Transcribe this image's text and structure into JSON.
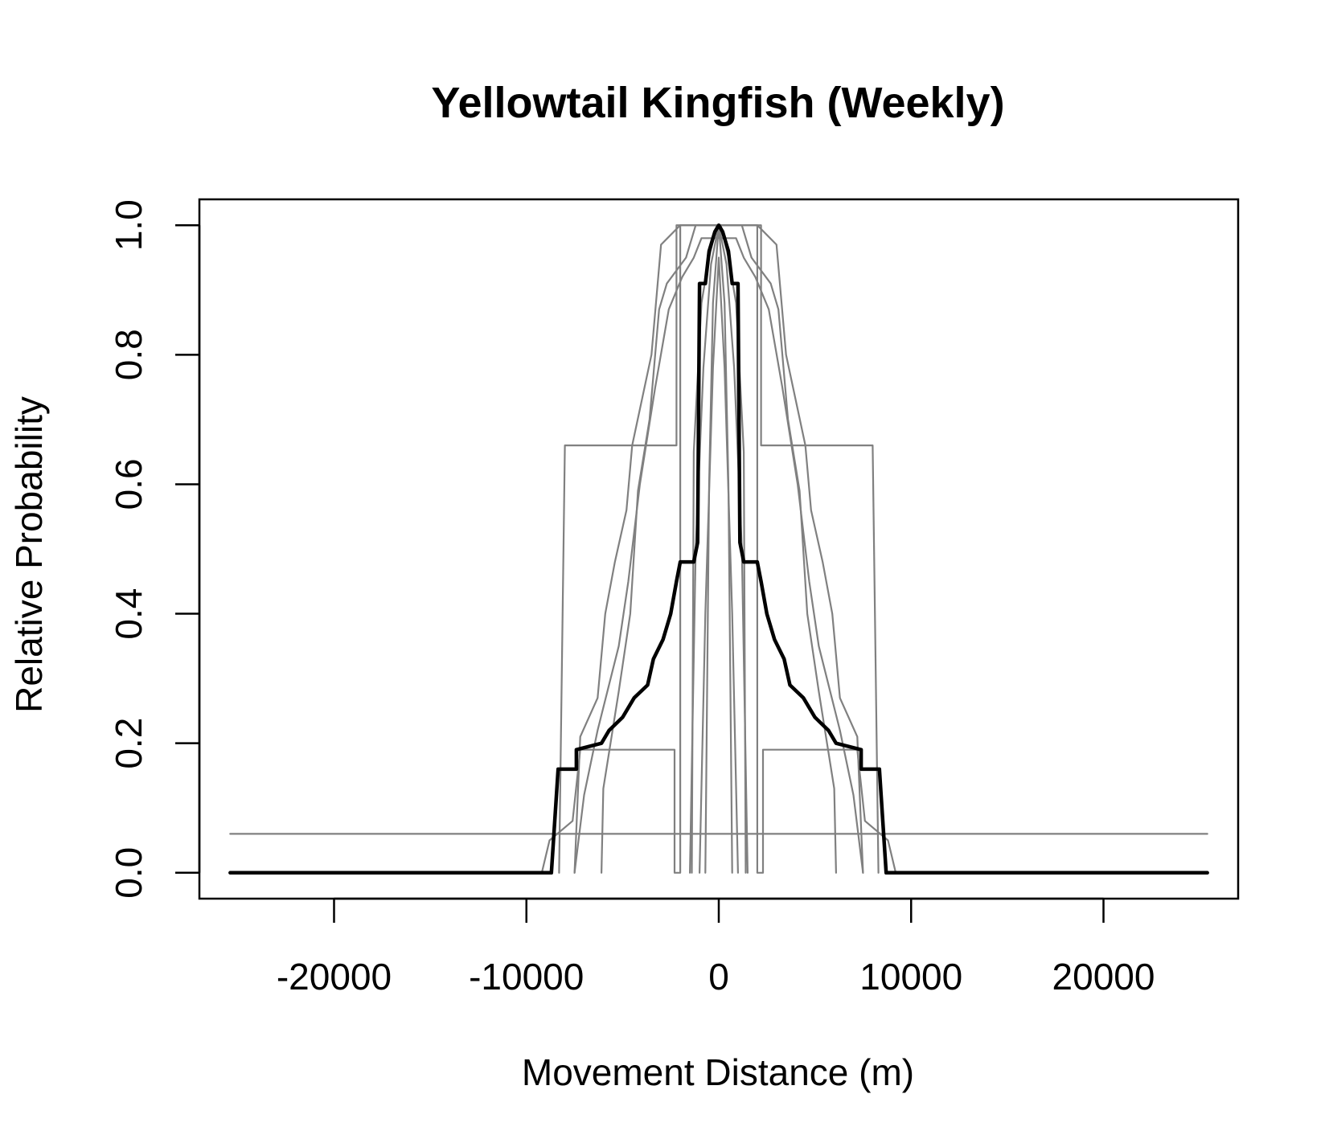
{
  "chart_data": {
    "type": "line",
    "title": "Yellowtail Kingfish (Weekly)",
    "xlabel": "Movement Distance (m)",
    "ylabel": "Relative Probability",
    "xlim": [
      -27000,
      27000
    ],
    "ylim": [
      -0.04,
      1.04
    ],
    "x_ticks": [
      -20000,
      -10000,
      0,
      10000,
      20000
    ],
    "x_tick_labels": [
      "-20000",
      "-10000",
      "0",
      "10000",
      "20000"
    ],
    "y_ticks": [
      0.0,
      0.2,
      0.4,
      0.6,
      0.8,
      1.0
    ],
    "y_tick_labels": [
      "0.0",
      "0.2",
      "0.4",
      "0.6",
      "0.8",
      "1.0"
    ],
    "grid": false,
    "legend": "none",
    "colors": {
      "individual": "#808080",
      "mean": "#000000"
    },
    "series": [
      {
        "role": "individual",
        "points": [
          [
            -25400,
            0.06
          ],
          [
            25400,
            0.06
          ]
        ]
      },
      {
        "role": "individual",
        "points": [
          [
            -8300,
            0
          ],
          [
            -8000,
            0.66
          ],
          [
            -2200,
            0.66
          ],
          [
            -2200,
            1.0
          ],
          [
            2200,
            1.0
          ],
          [
            2200,
            0.66
          ],
          [
            8000,
            0.66
          ],
          [
            8300,
            0
          ]
        ]
      },
      {
        "role": "individual",
        "points": [
          [
            -9200,
            0
          ],
          [
            -8800,
            0.05
          ],
          [
            -7600,
            0.08
          ],
          [
            -7200,
            0.19
          ],
          [
            -2300,
            0.19
          ],
          [
            -2300,
            0
          ],
          [
            -2000,
            0
          ],
          [
            -2000,
            1.0
          ],
          [
            2000,
            1.0
          ],
          [
            2000,
            0
          ],
          [
            2300,
            0
          ],
          [
            2300,
            0.19
          ],
          [
            7200,
            0.19
          ],
          [
            7600,
            0.08
          ],
          [
            8800,
            0.05
          ],
          [
            9200,
            0
          ]
        ]
      },
      {
        "role": "individual",
        "points": [
          [
            -7500,
            0
          ],
          [
            -7200,
            0.21
          ],
          [
            -6300,
            0.27
          ],
          [
            -5900,
            0.4
          ],
          [
            -5400,
            0.48
          ],
          [
            -4800,
            0.56
          ],
          [
            -4500,
            0.66
          ],
          [
            -3500,
            0.8
          ],
          [
            -3000,
            0.97
          ],
          [
            -2000,
            1.0
          ],
          [
            2000,
            1.0
          ],
          [
            3000,
            0.97
          ],
          [
            3500,
            0.8
          ],
          [
            4500,
            0.66
          ],
          [
            4800,
            0.56
          ],
          [
            5400,
            0.48
          ],
          [
            5900,
            0.4
          ],
          [
            6300,
            0.27
          ],
          [
            7200,
            0.21
          ],
          [
            7500,
            0
          ]
        ]
      },
      {
        "role": "individual",
        "points": [
          [
            -6100,
            0
          ],
          [
            -6000,
            0.13
          ],
          [
            -5200,
            0.28
          ],
          [
            -4600,
            0.4
          ],
          [
            -4200,
            0.59
          ],
          [
            -3600,
            0.7
          ],
          [
            -3100,
            0.87
          ],
          [
            -2700,
            0.91
          ],
          [
            -1700,
            0.95
          ],
          [
            -1200,
            1.0
          ],
          [
            1200,
            1.0
          ],
          [
            1700,
            0.95
          ],
          [
            2700,
            0.91
          ],
          [
            3100,
            0.87
          ],
          [
            3600,
            0.7
          ],
          [
            4200,
            0.59
          ],
          [
            4600,
            0.4
          ],
          [
            5200,
            0.28
          ],
          [
            6000,
            0.13
          ],
          [
            6100,
            0
          ]
        ]
      },
      {
        "role": "individual",
        "points": [
          [
            -7500,
            0
          ],
          [
            -7000,
            0.12
          ],
          [
            -6300,
            0.22
          ],
          [
            -5200,
            0.35
          ],
          [
            -4700,
            0.45
          ],
          [
            -4100,
            0.6
          ],
          [
            -3300,
            0.75
          ],
          [
            -2600,
            0.87
          ],
          [
            -1900,
            0.92
          ],
          [
            -1300,
            0.95
          ],
          [
            -900,
            0.98
          ],
          [
            900,
            0.98
          ],
          [
            1300,
            0.95
          ],
          [
            1900,
            0.92
          ],
          [
            2600,
            0.87
          ],
          [
            3300,
            0.75
          ],
          [
            4100,
            0.6
          ],
          [
            4700,
            0.45
          ],
          [
            5200,
            0.35
          ],
          [
            6300,
            0.22
          ],
          [
            7000,
            0.12
          ],
          [
            7500,
            0
          ]
        ]
      },
      {
        "role": "individual",
        "points": [
          [
            -1400,
            0
          ],
          [
            -1300,
            0.65
          ],
          [
            -900,
            0.88
          ],
          [
            -500,
            0.95
          ],
          [
            -100,
            1.0
          ],
          [
            100,
            1.0
          ],
          [
            500,
            0.95
          ],
          [
            900,
            0.88
          ],
          [
            1300,
            0.65
          ],
          [
            1400,
            0
          ]
        ]
      },
      {
        "role": "individual",
        "points": [
          [
            -700,
            0
          ],
          [
            -500,
            0.6
          ],
          [
            -300,
            0.88
          ],
          [
            0,
            1.0
          ],
          [
            300,
            0.88
          ],
          [
            500,
            0.6
          ],
          [
            700,
            0
          ]
        ]
      },
      {
        "role": "individual",
        "points": [
          [
            -1500,
            0
          ],
          [
            -1200,
            0.5
          ],
          [
            -800,
            0.78
          ],
          [
            -400,
            0.94
          ],
          [
            0,
            1.0
          ],
          [
            400,
            0.94
          ],
          [
            800,
            0.78
          ],
          [
            1200,
            0.5
          ],
          [
            1500,
            0
          ]
        ]
      },
      {
        "role": "individual",
        "points": [
          [
            -1000,
            0
          ],
          [
            -700,
            0.4
          ],
          [
            -300,
            0.78
          ],
          [
            0,
            0.95
          ],
          [
            300,
            0.78
          ],
          [
            700,
            0.4
          ],
          [
            1000,
            0
          ]
        ]
      },
      {
        "role": "mean",
        "points": [
          [
            -25400,
            0
          ],
          [
            -8700,
            0
          ],
          [
            -8350,
            0.16
          ],
          [
            -7400,
            0.16
          ],
          [
            -7400,
            0.19
          ],
          [
            -6100,
            0.2
          ],
          [
            -5700,
            0.22
          ],
          [
            -5000,
            0.24
          ],
          [
            -4400,
            0.27
          ],
          [
            -3700,
            0.29
          ],
          [
            -3400,
            0.33
          ],
          [
            -2900,
            0.36
          ],
          [
            -2500,
            0.4
          ],
          [
            -2200,
            0.45
          ],
          [
            -2000,
            0.48
          ],
          [
            -1300,
            0.48
          ],
          [
            -1100,
            0.51
          ],
          [
            -1000,
            0.91
          ],
          [
            -700,
            0.91
          ],
          [
            -500,
            0.96
          ],
          [
            -200,
            0.99
          ],
          [
            0,
            1.0
          ],
          [
            200,
            0.99
          ],
          [
            500,
            0.96
          ],
          [
            700,
            0.91
          ],
          [
            1000,
            0.91
          ],
          [
            1100,
            0.51
          ],
          [
            1300,
            0.48
          ],
          [
            2000,
            0.48
          ],
          [
            2200,
            0.45
          ],
          [
            2500,
            0.4
          ],
          [
            2900,
            0.36
          ],
          [
            3400,
            0.33
          ],
          [
            3700,
            0.29
          ],
          [
            4400,
            0.27
          ],
          [
            5000,
            0.24
          ],
          [
            5700,
            0.22
          ],
          [
            6100,
            0.2
          ],
          [
            7400,
            0.19
          ],
          [
            7400,
            0.16
          ],
          [
            8350,
            0.16
          ],
          [
            8700,
            0
          ],
          [
            25400,
            0
          ]
        ]
      }
    ]
  }
}
